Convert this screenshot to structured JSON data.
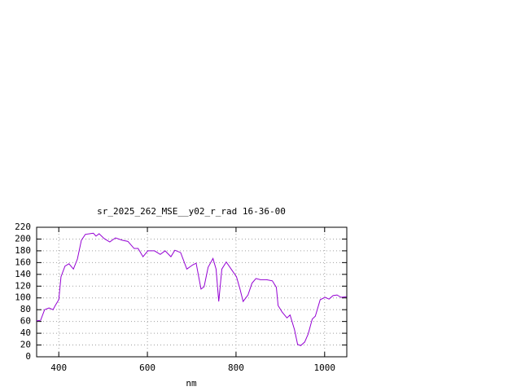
{
  "chart_data": {
    "type": "line",
    "title": "sr_2025_262_MSE__y02_r_rad 16-36-00",
    "x_label": "nm",
    "xlim": [
      350,
      1050
    ],
    "xticks": [
      400,
      600,
      800,
      1000
    ],
    "ylim": [
      0,
      220
    ],
    "yticks": [
      0,
      20,
      40,
      60,
      80,
      100,
      120,
      140,
      160,
      180,
      200,
      220
    ],
    "grid": true,
    "series": [
      {
        "color": "#9400d3",
        "x": [
          350,
          359,
          368,
          378,
          387,
          392,
          400,
          405,
          414,
          423,
          433,
          442,
          451,
          460,
          469,
          478,
          484,
          491,
          502,
          515,
          528,
          543,
          556,
          570,
          579,
          590,
          601,
          616,
          629,
          640,
          653,
          662,
          675,
          689,
          702,
          710,
          721,
          728,
          737,
          748,
          755,
          761,
          768,
          778,
          789,
          801,
          809,
          816,
          827,
          836,
          845,
          855,
          869,
          882,
          891,
          895,
          904,
          915,
          922,
          932,
          939,
          946,
          955,
          963,
          972,
          979,
          990,
          1001,
          1010,
          1019,
          1028,
          1037,
          1049
        ],
        "values": [
          61,
          62,
          80,
          83,
          80,
          87,
          97,
          136,
          154,
          158,
          149,
          166,
          198,
          208,
          209,
          210,
          205,
          209,
          201,
          195,
          202,
          198,
          196,
          184,
          184,
          170,
          180,
          180,
          174,
          180,
          170,
          181,
          177,
          149,
          156,
          159,
          115,
          119,
          152,
          167,
          149,
          94,
          149,
          161,
          149,
          136,
          115,
          94,
          105,
          125,
          133,
          131,
          131,
          129,
          118,
          87,
          76,
          66,
          71,
          46,
          21,
          19,
          25,
          39,
          64,
          69,
          97,
          101,
          98,
          104,
          105,
          101,
          102
        ]
      }
    ]
  }
}
